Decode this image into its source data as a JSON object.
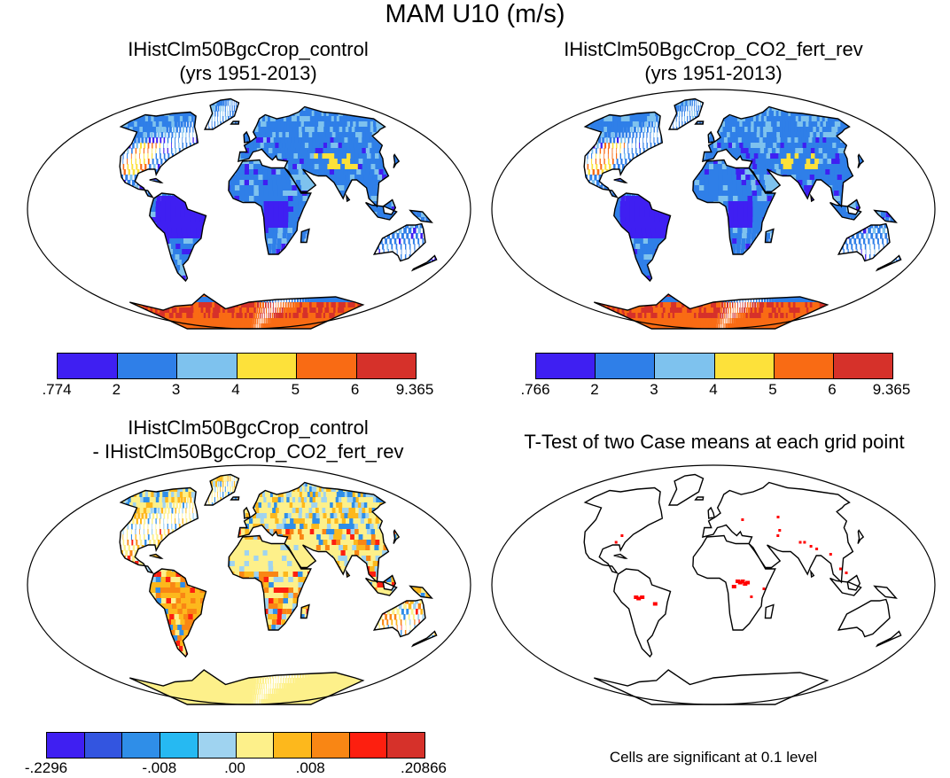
{
  "title": "MAM U10 (m/s)",
  "panels": [
    {
      "title_line1": "IHistClm50BgcCrop_control",
      "title_line2": "(yrs 1951-2013)"
    },
    {
      "title_line1": "IHistClm50BgcCrop_CO2_fert_rev",
      "title_line2": "(yrs 1951-2013)"
    },
    {
      "title_line1": "IHistClm50BgcCrop_control",
      "title_line2": "- IHistClm50BgcCrop_CO2_fert_rev"
    },
    {
      "title_line1": "T-Test of two Case means at each grid point"
    }
  ],
  "colorbars": {
    "wind_control": {
      "colors": [
        "#3f1ff2",
        "#2f7fe8",
        "#7ec2ee",
        "#fde13a",
        "#f96b14",
        "#d6312a"
      ],
      "labels": [
        ".774",
        "2",
        "3",
        "4",
        "5",
        "6",
        "9.365"
      ]
    },
    "wind_co2": {
      "colors": [
        "#3f1ff2",
        "#2f7fe8",
        "#7ec2ee",
        "#fde13a",
        "#f96b14",
        "#d6312a"
      ],
      "labels": [
        ".766",
        "2",
        "3",
        "4",
        "5",
        "6",
        "9.365"
      ]
    },
    "difference": {
      "colors": [
        "#3f1ff2",
        "#3355e0",
        "#2f8ee8",
        "#26b9f2",
        "#9fd3f0",
        "#fdf08a",
        "#fdb81c",
        "#f98614",
        "#fd1f0f",
        "#d6312a"
      ],
      "labels": [
        "-.2296",
        "-.008",
        ".00",
        ".008",
        ".20866"
      ]
    }
  },
  "significance_note": "Cells are significant at 0.1 level",
  "significance_color": "#ff0000",
  "ocean_color": "#ffffff"
}
